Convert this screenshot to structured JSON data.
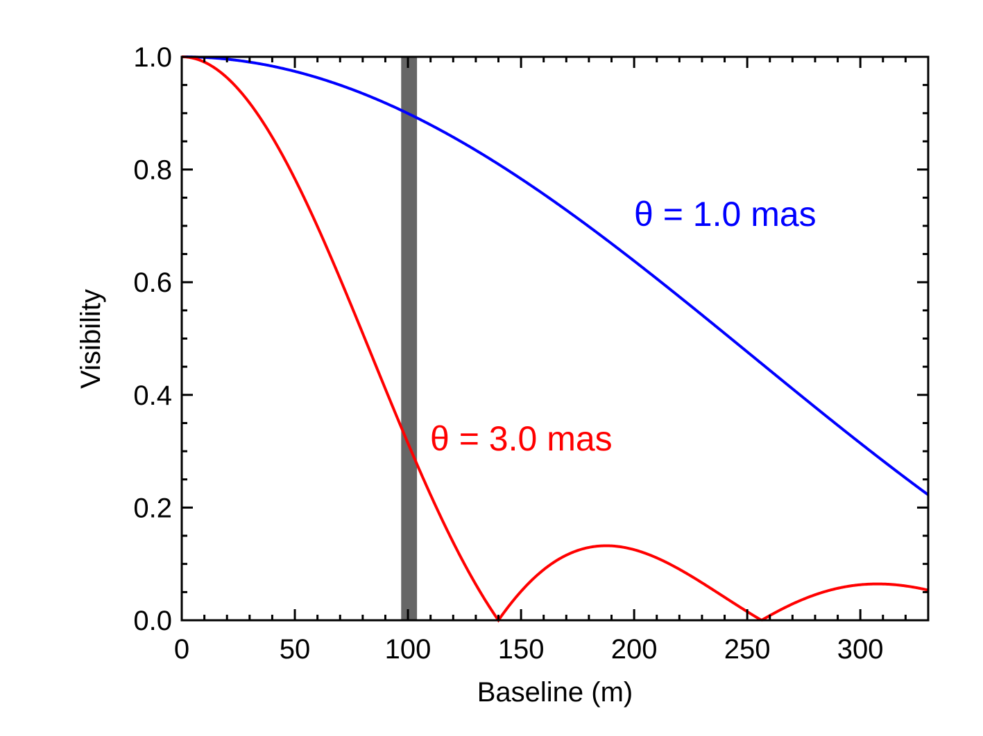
{
  "chart_data": {
    "type": "line",
    "title": "",
    "xlabel": "Baseline (m)",
    "ylabel": "Visibility",
    "xlim": [
      0,
      330
    ],
    "ylim": [
      0.0,
      1.0
    ],
    "xticks": [
      0,
      50,
      100,
      150,
      200,
      250,
      300
    ],
    "xtick_labels": [
      "0",
      "50",
      "100",
      "150",
      "200",
      "250",
      "300"
    ],
    "x_minor_step": 10,
    "yticks": [
      0.0,
      0.2,
      0.4,
      0.6,
      0.8,
      1.0
    ],
    "ytick_labels": [
      "0.0",
      "0.2",
      "0.4",
      "0.6",
      "0.8",
      "1.0"
    ],
    "y_minor_step": 0.05,
    "grid": false,
    "model": "uniform disk |2 J1(x)/x|, x = pi * theta * B / lambda",
    "series": [
      {
        "name": "θ = 1.0 mas",
        "label": "θ = 1.0 mas",
        "color": "#0000ff",
        "theta_mas": 1.0,
        "x": [
          0,
          25,
          50,
          75,
          100,
          125,
          150,
          175,
          200,
          225,
          250,
          275,
          300,
          330
        ],
        "y": [
          1.0,
          0.994,
          0.976,
          0.946,
          0.905,
          0.855,
          0.797,
          0.731,
          0.66,
          0.585,
          0.507,
          0.43,
          0.353,
          0.225
        ]
      },
      {
        "name": "θ = 3.0 mas",
        "label": "θ = 3.0 mas",
        "color": "#ff0000",
        "theta_mas": 3.0,
        "x": [
          0,
          25,
          50,
          75,
          100,
          125,
          140,
          160,
          188,
          220,
          258,
          285,
          310,
          330
        ],
        "y": [
          1.0,
          0.946,
          0.797,
          0.585,
          0.353,
          0.14,
          0.0,
          0.08,
          0.132,
          0.09,
          0.0,
          0.045,
          0.063,
          0.055
        ]
      }
    ],
    "annotations": [
      {
        "type": "vertical-band",
        "x_range": [
          97,
          104
        ],
        "color": "#666666"
      }
    ]
  }
}
